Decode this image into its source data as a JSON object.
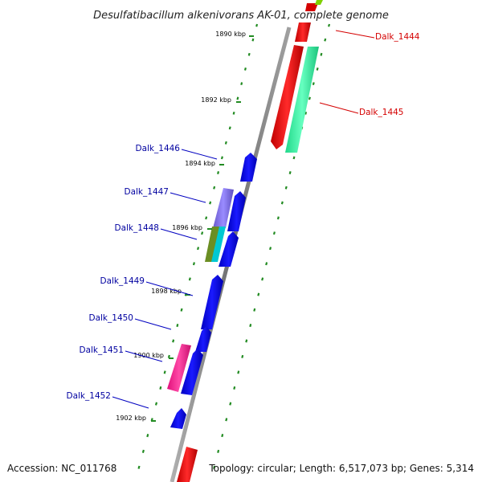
{
  "title": "Desulfatibacillum alkenivorans AK-01, complete genome",
  "footer": {
    "accession": "Accession: NC_011768",
    "topology": "Topology: circular; Length: 6,517,073 bp; Genes: 5,314"
  },
  "ticks": [
    "1890 kbp",
    "1892 kbp",
    "1894 kbp",
    "1896 kbp",
    "1898 kbp",
    "1900 kbp",
    "1902 kbp"
  ],
  "genes": [
    {
      "label": "Dalk_1444",
      "color": "#d40000"
    },
    {
      "label": "Dalk_1445",
      "color": "#d40000"
    },
    {
      "label": "Dalk_1446",
      "color": "#0000a0"
    },
    {
      "label": "Dalk_1447",
      "color": "#0000a0"
    },
    {
      "label": "Dalk_1448",
      "color": "#0000a0"
    },
    {
      "label": "Dalk_1449",
      "color": "#0000a0"
    },
    {
      "label": "Dalk_1450",
      "color": "#0000a0"
    },
    {
      "label": "Dalk_1451",
      "color": "#0000a0"
    },
    {
      "label": "Dalk_1452",
      "color": "#0000a0"
    }
  ],
  "colors": {
    "backbone": "#8c8c8c",
    "forward_cds": "#ff0000",
    "reverse_cds": "#0000ff",
    "dotted_ring": "#228b22",
    "feature_green": "#33ffa0",
    "feature_purple": "#7b68ee",
    "feature_olive": "#6b8e23",
    "feature_cyan": "#00c8d2",
    "feature_pink": "#ff1493",
    "feature_lime": "#7fd000"
  }
}
